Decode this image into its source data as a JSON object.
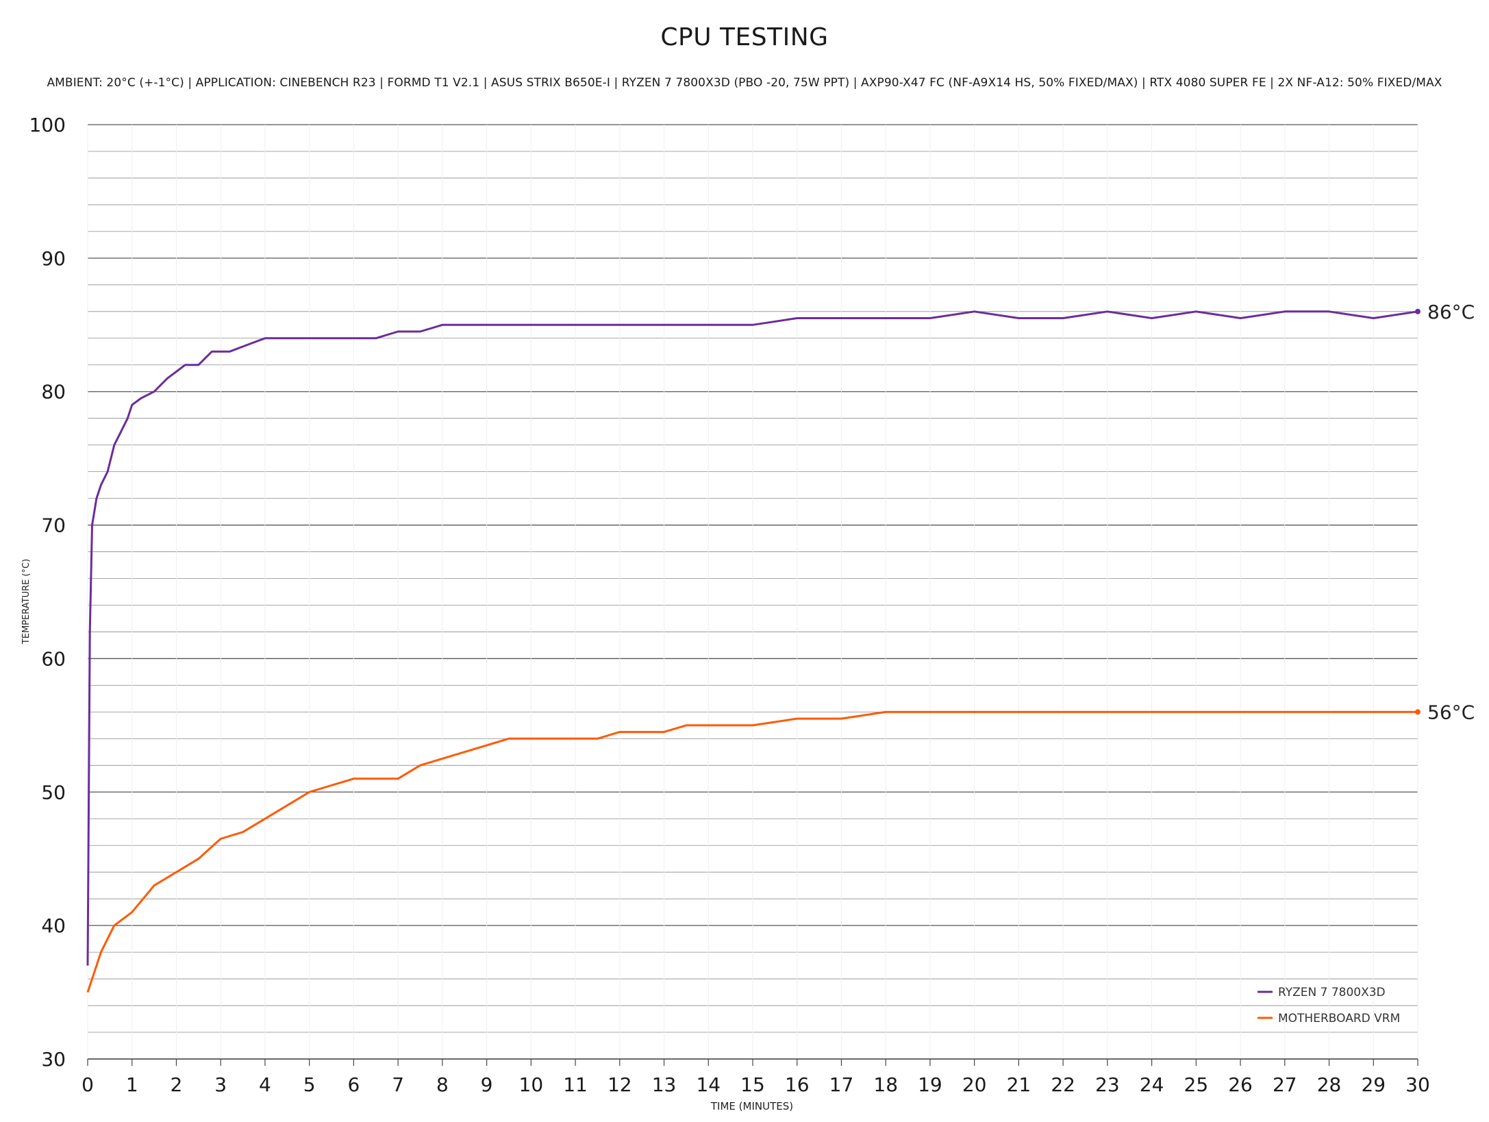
{
  "chart_data": {
    "type": "line",
    "title": "CPU TESTING",
    "subtitle": "AMBIENT: 20°C (+-1°C) | APPLICATION: CINEBENCH R23 | FORMD T1 V2.1 | ASUS STRIX B650E-I | RYZEN 7 7800X3D (PBO -20, 75W PPT) | AXP90-X47 FC (NF-A9X14 HS, 50% FIXED/MAX) | RTX 4080 SUPER FE | 2X NF-A12: 50% FIXED/MAX",
    "xlabel": "TIME (MINUTES)",
    "ylabel": "TEMPERATURE (°C)",
    "xlim": [
      0,
      30
    ],
    "ylim": [
      30,
      100
    ],
    "x_ticks": [
      "0",
      "1",
      "2",
      "3",
      "4",
      "5",
      "6",
      "7",
      "8",
      "9",
      "10",
      "11",
      "12",
      "13",
      "14",
      "15",
      "16",
      "17",
      "18",
      "19",
      "20",
      "21",
      "22",
      "23",
      "24",
      "25",
      "26",
      "27",
      "28",
      "29",
      "30"
    ],
    "y_ticks": [
      "100",
      "90",
      "80",
      "70",
      "60",
      "50",
      "40",
      "30"
    ],
    "grid": true,
    "legend_position": "bottom-right",
    "series": [
      {
        "name": "RYZEN 7 7800X3D",
        "color": "#6a2c9e",
        "end_label": "86°C",
        "x": [
          0,
          0.05,
          0.1,
          0.15,
          0.2,
          0.3,
          0.45,
          0.6,
          0.75,
          0.9,
          1.0,
          1.2,
          1.5,
          1.8,
          2.0,
          2.2,
          2.5,
          2.8,
          3.2,
          3.6,
          4.0,
          4.5,
          5.0,
          5.5,
          6.0,
          6.5,
          7.0,
          7.5,
          8.0,
          8.5,
          9.0,
          10.0,
          11.0,
          12.0,
          13.0,
          14.0,
          15.0,
          16.0,
          17.0,
          18.0,
          19.0,
          20.0,
          21.0,
          22.0,
          23.0,
          24.0,
          25.0,
          26.0,
          27.0,
          28.0,
          29.0,
          30.0
        ],
        "values": [
          37,
          62,
          70,
          71,
          72,
          73,
          74,
          76,
          77,
          78,
          79,
          79.5,
          80,
          81,
          81.5,
          82,
          82,
          83,
          83,
          83.5,
          84,
          84,
          84,
          84,
          84,
          84,
          84.5,
          84.5,
          85,
          85,
          85,
          85,
          85,
          85,
          85,
          85,
          85,
          85.5,
          85.5,
          85.5,
          85.5,
          86,
          85.5,
          85.5,
          86,
          85.5,
          86,
          85.5,
          86,
          86,
          85.5,
          86
        ]
      },
      {
        "name": "MOTHERBOARD VRM",
        "color": "#ff5a00",
        "end_label": "56°C",
        "x": [
          0,
          0.1,
          0.3,
          0.6,
          1.0,
          1.5,
          2.0,
          2.5,
          3.0,
          3.5,
          4.0,
          4.5,
          5.0,
          5.5,
          6.0,
          6.5,
          7.0,
          7.5,
          8.0,
          8.5,
          9.0,
          9.5,
          10.0,
          10.5,
          11.0,
          11.5,
          12.0,
          12.5,
          13.0,
          13.5,
          14.0,
          14.5,
          15.0,
          16.0,
          17.0,
          18.0,
          19.0,
          20.0,
          21.0,
          22.0,
          23.0,
          24.0,
          25.0,
          26.0,
          27.0,
          28.0,
          29.0,
          30.0
        ],
        "values": [
          35,
          36,
          38,
          40,
          41,
          43,
          44,
          45,
          46.5,
          47,
          48,
          49,
          50,
          50.5,
          51,
          51,
          51,
          52,
          52.5,
          53,
          53.5,
          54,
          54,
          54,
          54,
          54,
          54.5,
          54.5,
          54.5,
          55,
          55,
          55,
          55,
          55.5,
          55.5,
          56,
          56,
          56,
          56,
          56,
          56,
          56,
          56,
          56,
          56,
          56,
          56,
          56
        ]
      }
    ]
  }
}
